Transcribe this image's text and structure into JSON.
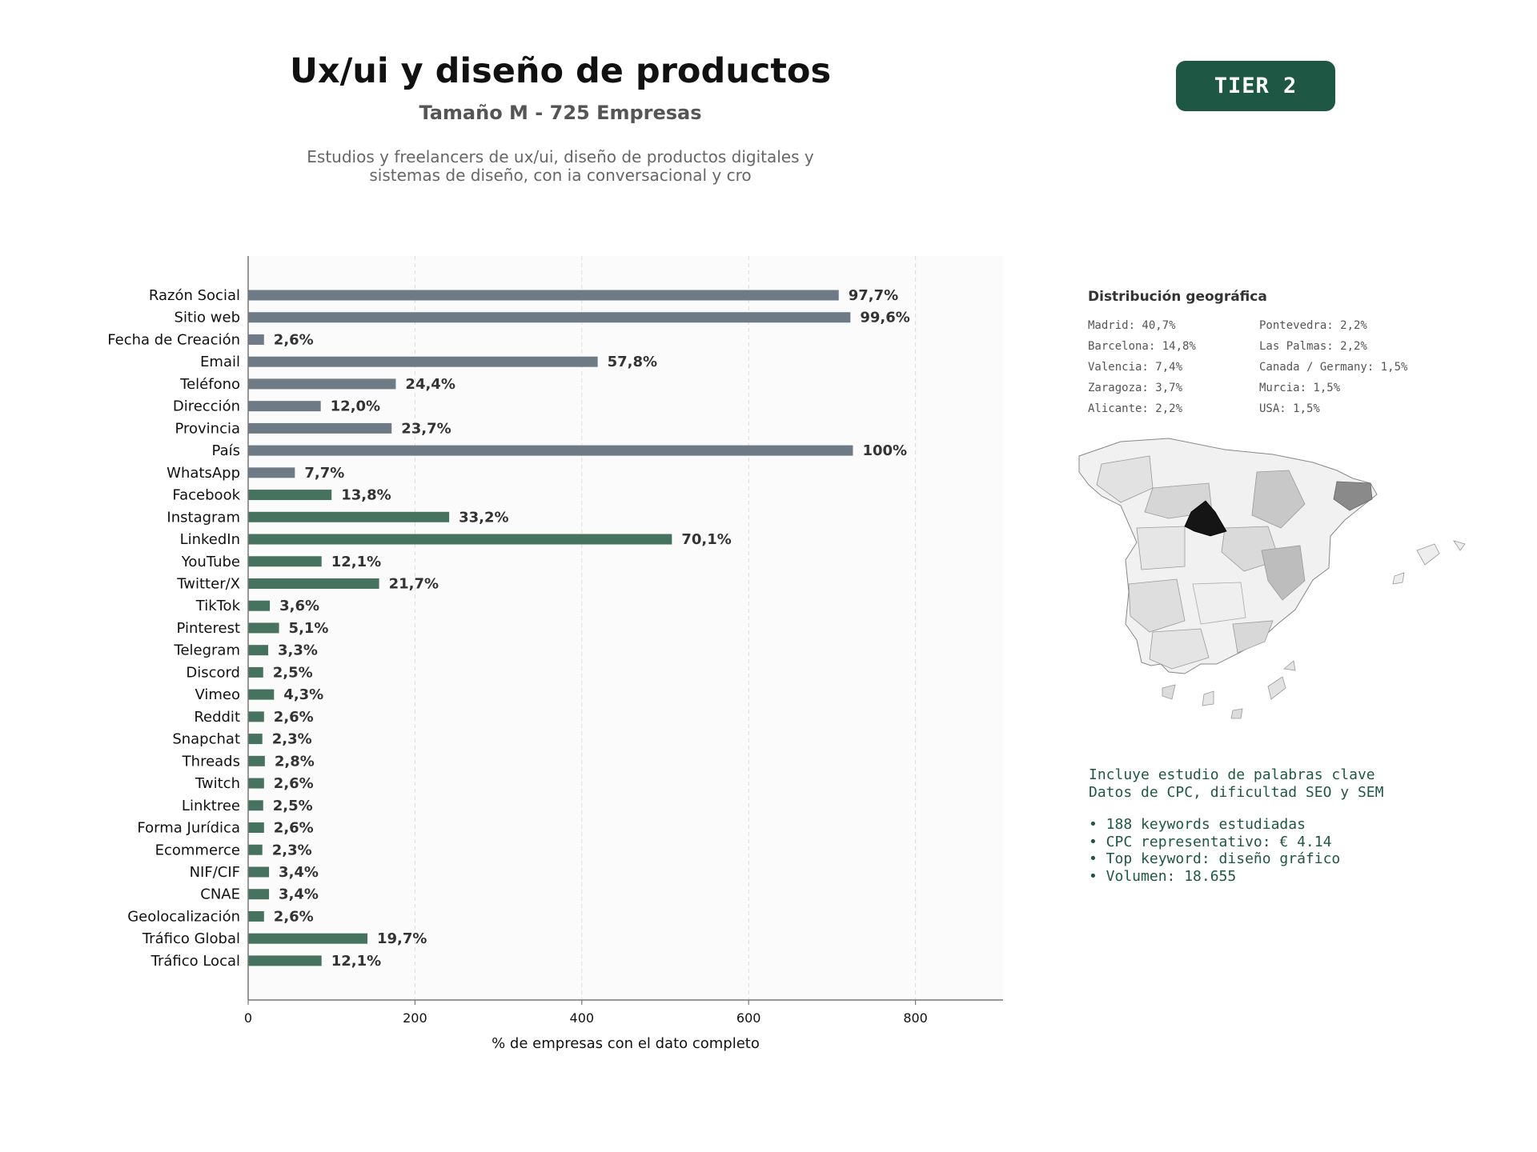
{
  "header": {
    "title": "Ux/ui y diseño de productos",
    "subtitle": "Tamaño M - 725 Empresas",
    "description_line1": "Estudios y freelancers de ux/ui, diseño de productos digitales y",
    "description_line2": "sistemas de diseño, con ia conversacional y cro",
    "tier": "TIER 2"
  },
  "colors": {
    "gray_bar": "#6e7a85",
    "green_bar": "#45735f",
    "accent": "#1e5744"
  },
  "chart_data": {
    "type": "bar",
    "orientation": "horizontal",
    "total": 725,
    "xlabel": "% de empresas con el dato completo",
    "xlim": [
      0,
      905
    ],
    "xticks": [
      0,
      200,
      400,
      600,
      800
    ],
    "grid": true,
    "bars": [
      {
        "label": "Razón Social",
        "value": 708,
        "pct": "97,7%",
        "group": "gray"
      },
      {
        "label": "Sitio web",
        "value": 722,
        "pct": "99,6%",
        "group": "gray"
      },
      {
        "label": "Fecha de Creación",
        "value": 19,
        "pct": "2,6%",
        "group": "gray"
      },
      {
        "label": "Email",
        "value": 419,
        "pct": "57,8%",
        "group": "gray"
      },
      {
        "label": "Teléfono",
        "value": 177,
        "pct": "24,4%",
        "group": "gray"
      },
      {
        "label": "Dirección",
        "value": 87,
        "pct": "12,0%",
        "group": "gray"
      },
      {
        "label": "Provincia",
        "value": 172,
        "pct": "23,7%",
        "group": "gray"
      },
      {
        "label": "País",
        "value": 725,
        "pct": "100%",
        "group": "gray"
      },
      {
        "label": "WhatsApp",
        "value": 56,
        "pct": "7,7%",
        "group": "gray"
      },
      {
        "label": "Facebook",
        "value": 100,
        "pct": "13,8%",
        "group": "green"
      },
      {
        "label": "Instagram",
        "value": 241,
        "pct": "33,2%",
        "group": "green"
      },
      {
        "label": "LinkedIn",
        "value": 508,
        "pct": "70,1%",
        "group": "green"
      },
      {
        "label": "YouTube",
        "value": 88,
        "pct": "12,1%",
        "group": "green"
      },
      {
        "label": "Twitter/X",
        "value": 157,
        "pct": "21,7%",
        "group": "green"
      },
      {
        "label": "TikTok",
        "value": 26,
        "pct": "3,6%",
        "group": "green"
      },
      {
        "label": "Pinterest",
        "value": 37,
        "pct": "5,1%",
        "group": "green"
      },
      {
        "label": "Telegram",
        "value": 24,
        "pct": "3,3%",
        "group": "green"
      },
      {
        "label": "Discord",
        "value": 18,
        "pct": "2,5%",
        "group": "green"
      },
      {
        "label": "Vimeo",
        "value": 31,
        "pct": "4,3%",
        "group": "green"
      },
      {
        "label": "Reddit",
        "value": 19,
        "pct": "2,6%",
        "group": "green"
      },
      {
        "label": "Snapchat",
        "value": 17,
        "pct": "2,3%",
        "group": "green"
      },
      {
        "label": "Threads",
        "value": 20,
        "pct": "2,8%",
        "group": "green"
      },
      {
        "label": "Twitch",
        "value": 19,
        "pct": "2,6%",
        "group": "green"
      },
      {
        "label": "Linktree",
        "value": 18,
        "pct": "2,5%",
        "group": "green"
      },
      {
        "label": "Forma Jurídica",
        "value": 19,
        "pct": "2,6%",
        "group": "green"
      },
      {
        "label": "Ecommerce",
        "value": 17,
        "pct": "2,3%",
        "group": "green"
      },
      {
        "label": "NIF/CIF",
        "value": 25,
        "pct": "3,4%",
        "group": "green"
      },
      {
        "label": "CNAE",
        "value": 25,
        "pct": "3,4%",
        "group": "green"
      },
      {
        "label": "Geolocalización",
        "value": 19,
        "pct": "2,6%",
        "group": "green"
      },
      {
        "label": "Tráfico Global",
        "value": 143,
        "pct": "19,7%",
        "group": "green"
      },
      {
        "label": "Tráfico Local",
        "value": 88,
        "pct": "12,1%",
        "group": "green"
      }
    ]
  },
  "geo": {
    "title": "Distribución geográfica",
    "items": [
      "Madrid: 40,7%",
      "Pontevedra: 2,2%",
      "Barcelona: 14,8%",
      "Las Palmas: 2,2%",
      "Valencia: 7,4%",
      "Canada / Germany: 1,5%",
      "Zaragoza: 3,7%",
      "Murcia: 1,5%",
      "Alicante: 2,2%",
      "USA: 1,5%"
    ]
  },
  "keywords": {
    "line1": "Incluye estudio de palabras clave",
    "line2": "Datos de CPC, dificultad SEO y SEM",
    "bullets": [
      "• 188 keywords estudiadas",
      "• CPC representativo: € 4.14",
      "• Top keyword: diseño gráfico",
      "• Volumen: 18.655"
    ]
  }
}
